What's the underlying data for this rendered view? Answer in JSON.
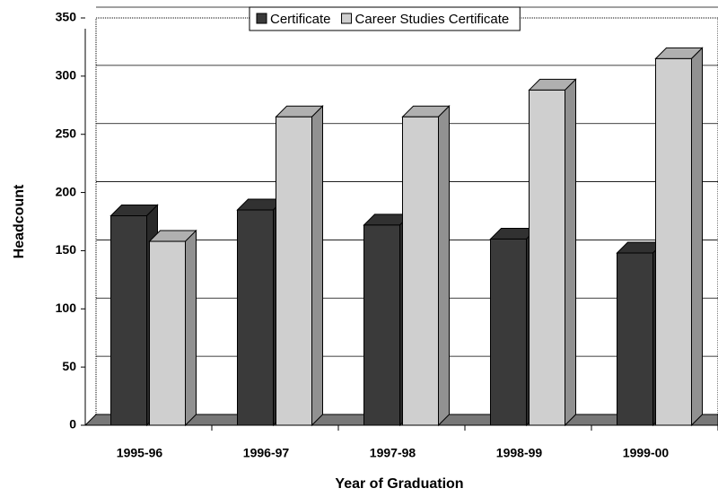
{
  "chart_data": {
    "type": "bar3d",
    "x_label": "Year of Graduation",
    "y_label": "Headcount",
    "categories": [
      "1995-96",
      "1996-97",
      "1997-98",
      "1998-99",
      "1999-00"
    ],
    "series": [
      {
        "name": "Certificate",
        "color": "#3a3a3a",
        "values": [
          180,
          185,
          172,
          160,
          148
        ]
      },
      {
        "name": "Career Studies Certificate",
        "color": "#cfcfcf",
        "values": [
          158,
          265,
          265,
          288,
          315
        ]
      }
    ],
    "ylim": [
      0,
      350
    ],
    "yticks": [
      0,
      50,
      100,
      150,
      200,
      250,
      300,
      350
    ],
    "grid": true,
    "legend": "top"
  }
}
